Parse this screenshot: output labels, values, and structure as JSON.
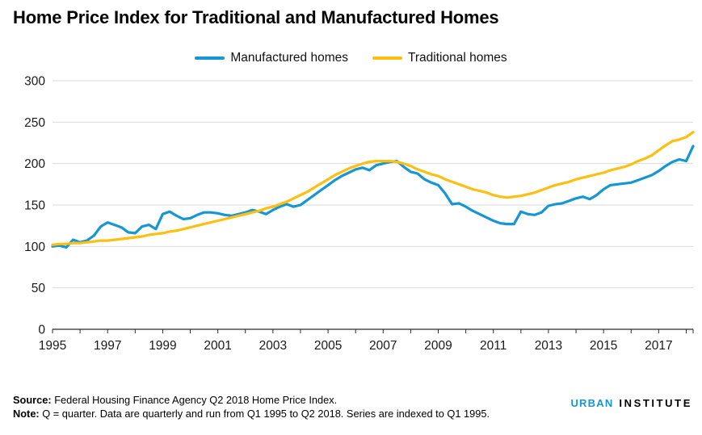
{
  "title": "Home Price Index for Traditional and Manufactured Homes",
  "footer": {
    "source_label": "Source:",
    "source_text": " Federal Housing Finance Agency Q2 2018 Home Price Index.",
    "note_label": "Note:",
    "note_text": " Q = quarter. Data are quarterly and run from Q1 1995 to Q2 2018. Series are indexed to Q1 1995."
  },
  "logo": {
    "urban": "URBAN",
    "institute": "INSTITUTE",
    "urban_color": "#1696d2"
  },
  "chart_data": {
    "type": "line",
    "title": "Home Price Index for Traditional and Manufactured Homes",
    "x_unit": "quarter",
    "x_start": "Q1 1995",
    "x_end": "Q2 2018",
    "x_tick_labels": [
      "1995",
      "1997",
      "1999",
      "2001",
      "2003",
      "2005",
      "2007",
      "2009",
      "2011",
      "2013",
      "2015",
      "2017"
    ],
    "x_tick_years_all": [
      "1995",
      "1996",
      "1997",
      "1998",
      "1999",
      "2000",
      "2001",
      "2002",
      "2003",
      "2004",
      "2005",
      "2006",
      "2007",
      "2008",
      "2009",
      "2010",
      "2011",
      "2012",
      "2013",
      "2014",
      "2015",
      "2016",
      "2017",
      "2018"
    ],
    "ylim": [
      0,
      300
    ],
    "y_ticks": [
      0,
      50,
      100,
      150,
      200,
      250,
      300
    ],
    "grid": "horizontal",
    "legend_position": "top-center",
    "grid_color": "#d9d9d9",
    "series": [
      {
        "name": "Manufactured homes",
        "color": "#1696d2",
        "values": [
          100,
          101,
          99,
          108,
          105,
          107,
          113,
          124,
          129,
          126,
          123,
          117,
          116,
          124,
          126,
          121,
          139,
          142,
          137,
          133,
          134,
          138,
          141,
          141,
          140,
          138,
          137,
          139,
          141,
          144,
          142,
          139,
          144,
          148,
          151,
          148,
          150,
          156,
          162,
          168,
          174,
          180,
          185,
          189,
          193,
          195,
          192,
          198,
          200,
          202,
          203,
          196,
          190,
          188,
          181,
          177,
          174,
          164,
          151,
          152,
          148,
          143,
          139,
          135,
          131,
          128,
          127,
          127,
          142,
          139,
          138,
          141,
          149,
          151,
          152,
          155,
          158,
          160,
          157,
          162,
          169,
          174,
          175,
          176,
          177,
          180,
          183,
          186,
          191,
          197,
          202,
          205,
          203,
          221
        ]
      },
      {
        "name": "Traditional homes",
        "color": "#fdbf11",
        "values": [
          102,
          103,
          103,
          104,
          104,
          105,
          106,
          107,
          107,
          108,
          109,
          110,
          111,
          112,
          114,
          115,
          116,
          118,
          119,
          121,
          123,
          125,
          127,
          129,
          131,
          133,
          135,
          137,
          139,
          141,
          143,
          146,
          148,
          151,
          154,
          158,
          162,
          166,
          171,
          176,
          181,
          186,
          190,
          194,
          197,
          200,
          202,
          203,
          203,
          203,
          202,
          200,
          197,
          193,
          190,
          187,
          185,
          181,
          178,
          175,
          172,
          169,
          167,
          165,
          162,
          160,
          159,
          160,
          161,
          163,
          165,
          168,
          171,
          174,
          176,
          178,
          181,
          183,
          185,
          187,
          189,
          192,
          194,
          196,
          199,
          203,
          206,
          210,
          216,
          222,
          227,
          229,
          232,
          238
        ]
      }
    ]
  }
}
